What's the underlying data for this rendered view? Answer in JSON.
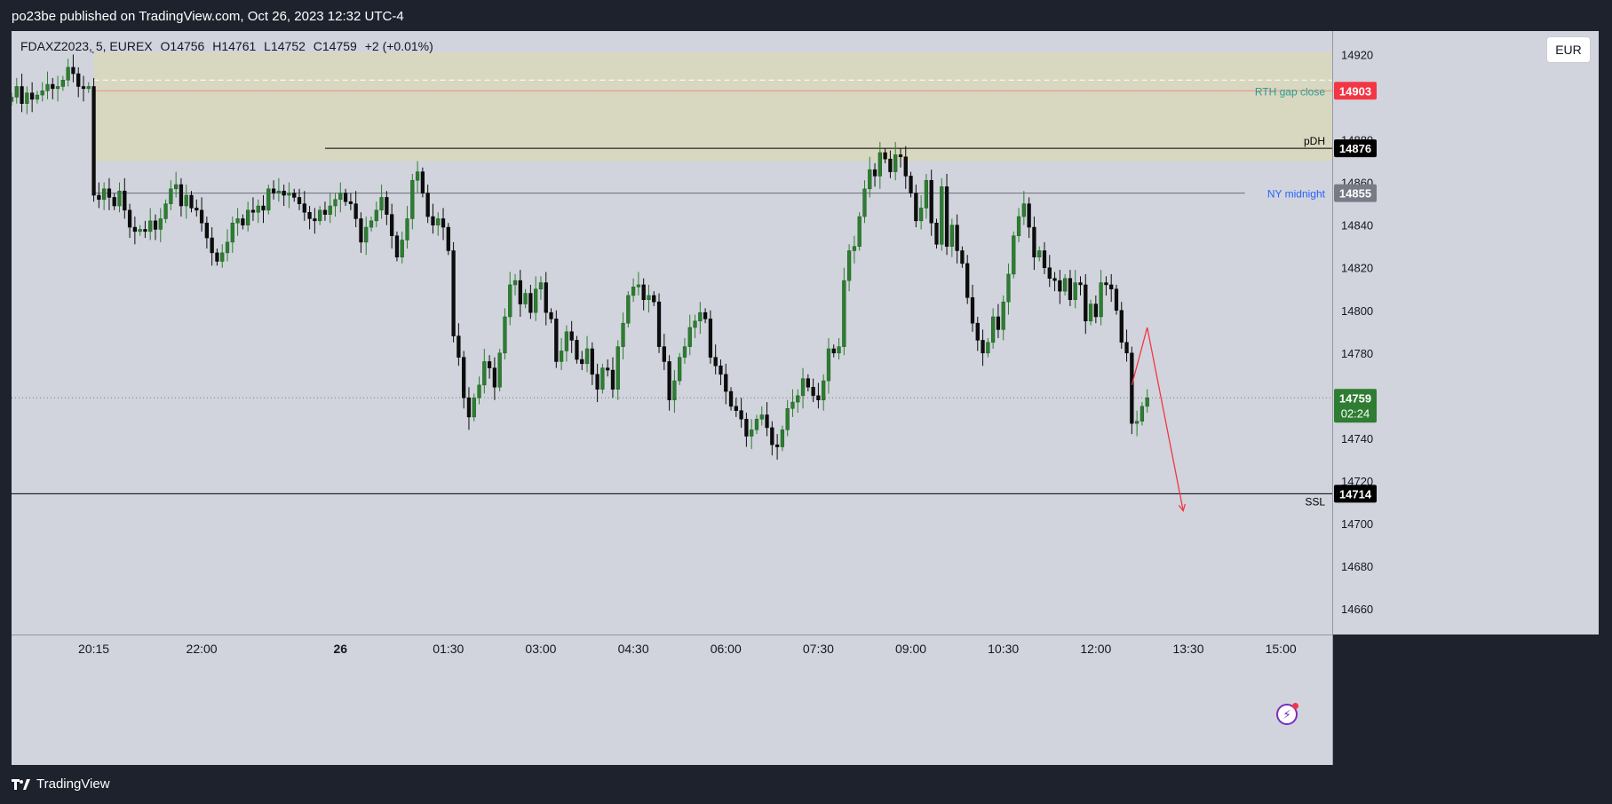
{
  "header": {
    "published": "po23be published on TradingView.com, Oct 26, 2023 12:32 UTC-4"
  },
  "symbol": {
    "name": "FDAXZ2023, 5, EUREX",
    "open": "O14756",
    "high": "H14761",
    "low": "L14752",
    "close": "C14759",
    "change": "+2 (+0.01%)"
  },
  "currency_button": "EUR",
  "brand": "TradingView",
  "colors": {
    "bull": "#2e7d32",
    "bear": "#0d0d0d",
    "chart_bg": "#d1d4dc",
    "zone": "#d8d7c0",
    "accent_red": "#f23645",
    "accent_blue": "#2962ff"
  },
  "chart_data": {
    "type": "candlestick",
    "ylim": [
      14648,
      14931
    ],
    "y_ticks": [
      14660,
      14680,
      14700,
      14720,
      14740,
      14760,
      14780,
      14800,
      14820,
      14840,
      14860,
      14880,
      14920
    ],
    "x_ticks": [
      {
        "label": "20:15",
        "bar": 0
      },
      {
        "label": "22:00",
        "bar": 21
      },
      {
        "label": "26",
        "bar": 48
      },
      {
        "label": "01:30",
        "bar": 69
      },
      {
        "label": "03:00",
        "bar": 87
      },
      {
        "label": "04:30",
        "bar": 105
      },
      {
        "label": "06:00",
        "bar": 123
      },
      {
        "label": "07:30",
        "bar": 141
      },
      {
        "label": "09:00",
        "bar": 159
      },
      {
        "label": "10:30",
        "bar": 177
      },
      {
        "label": "12:00",
        "bar": 195
      },
      {
        "label": "13:30",
        "bar": 213
      },
      {
        "label": "15:00",
        "bar": 231
      }
    ],
    "first_bar": -16,
    "last_bar": 241,
    "closes": [
      14900,
      14905,
      14897,
      14902,
      14899,
      14901,
      14903,
      14906,
      14904,
      14905,
      14908,
      14914,
      14911,
      14905,
      14904,
      14905,
      14854,
      14852,
      14857,
      14853,
      14849,
      14856,
      14847,
      14839,
      14837,
      14838,
      14837,
      14842,
      14838,
      14843,
      14850,
      14857,
      14859,
      14849,
      14854,
      14848,
      14847,
      14841,
      14834,
      14827,
      14823,
      14827,
      14832,
      14841,
      14843,
      14840,
      14847,
      14846,
      14849,
      14847,
      14857,
      14855,
      14856,
      14854,
      14855,
      14853,
      14850,
      14846,
      14843,
      14842,
      14847,
      14845,
      14849,
      14852,
      14855,
      14851,
      14850,
      14843,
      14832,
      14839,
      14842,
      14847,
      14853,
      14845,
      14835,
      14825,
      14833,
      14843,
      14861,
      14865,
      14855,
      14844,
      14840,
      14843,
      14839,
      14828,
      14788,
      14778,
      14759,
      14750,
      14759,
      14765,
      14776,
      14773,
      14764,
      14780,
      14797,
      14812,
      14814,
      14803,
      14808,
      14799,
      14810,
      14813,
      14799,
      14796,
      14776,
      14781,
      14790,
      14786,
      14777,
      14775,
      14782,
      14770,
      14763,
      14773,
      14772,
      14763,
      14783,
      14794,
      14807,
      14811,
      14812,
      14805,
      14807,
      14804,
      14783,
      14776,
      14758,
      14767,
      14778,
      14783,
      14792,
      14795,
      14799,
      14796,
      14778,
      14774,
      14770,
      14762,
      14755,
      14753,
      14749,
      14741,
      14744,
      14749,
      14751,
      14745,
      14737,
      14736,
      14744,
      14754,
      14757,
      14760,
      14768,
      14764,
      14760,
      14758,
      14767,
      14782,
      14780,
      14783,
      14814,
      14828,
      14830,
      14844,
      14857,
      14866,
      14863,
      14874,
      14871,
      14865,
      14873,
      14872,
      14863,
      14855,
      14842,
      14848,
      14861,
      14841,
      14831,
      14858,
      14830,
      14840,
      14828,
      14822,
      14806,
      14794,
      14786,
      14780,
      14785,
      14797,
      14791,
      14804,
      14817,
      14835,
      14844,
      14850,
      14839,
      14825,
      14828,
      14820,
      14815,
      14814,
      14809,
      14815,
      14805,
      14813,
      14812,
      14795,
      14803,
      14797,
      14813,
      14812,
      14810,
      14800,
      14785,
      14780,
      14747,
      14748,
      14755,
      14759
    ],
    "levels": [
      {
        "label": "RTH gap close",
        "value": 14903,
        "color": "#f23645"
      },
      {
        "label": "pDH",
        "value": 14876,
        "color": "#000000"
      },
      {
        "label": "NY midnight",
        "value": 14855,
        "color": "#2962ff"
      },
      {
        "label": "SSL",
        "value": 14714,
        "color": "#000000"
      }
    ],
    "last_price": "14759",
    "countdown": "02:24",
    "zone": {
      "from_bar": 0,
      "to_bar": 241,
      "top": 14921,
      "bottom": 14870
    },
    "projection": [
      {
        "bar": 202,
        "value": 14765
      },
      {
        "bar": 205,
        "value": 14792
      },
      {
        "bar": 212,
        "value": 14706
      }
    ]
  }
}
